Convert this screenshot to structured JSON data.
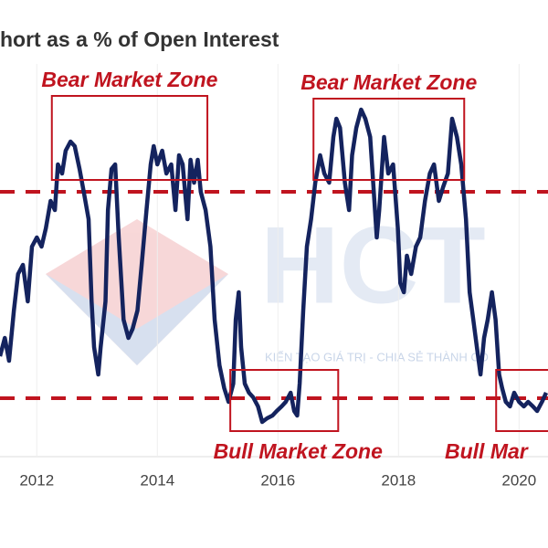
{
  "chart_data": {
    "type": "line",
    "title": "hort as a % of Open Interest",
    "watermark": "HCT",
    "watermark_tagline": "KIẾN TẠO GIÁ TRỊ - CHIA SẺ THÀNH CÔ",
    "xlim": [
      2011.39,
      2020.48
    ],
    "ylim": [
      0,
      380
    ],
    "xticks": [
      2012,
      2014,
      2016,
      2018,
      2020
    ],
    "grid": true,
    "hlines": [
      270,
      44
    ],
    "hline_color": "#c0141f",
    "annotations": [
      {
        "text": "Bear Market Zone",
        "x": [
          2012.25,
          2014.83
        ],
        "y": [
          283,
          375
        ],
        "side": "top"
      },
      {
        "text": "Bear Market Zone",
        "x": [
          2016.59,
          2019.09
        ],
        "y": [
          283,
          372
        ],
        "side": "top"
      },
      {
        "text": "Bull Market Zone",
        "x": [
          2015.21,
          2017.0
        ],
        "y": [
          8,
          75
        ],
        "side": "bottom"
      },
      {
        "text": "Bull Mar",
        "x": [
          2019.62,
          2020.6
        ],
        "y": [
          8,
          75
        ],
        "side": "bottom"
      }
    ],
    "annotation_color": "#c0141f",
    "series": [
      {
        "name": null,
        "color": "#14235e",
        "x": [
          2011.39,
          2011.47,
          2011.54,
          2011.62,
          2011.69,
          2011.77,
          2011.85,
          2011.92,
          2012.0,
          2012.08,
          2012.15,
          2012.23,
          2012.3,
          2012.35,
          2012.42,
          2012.48,
          2012.56,
          2012.63,
          2012.71,
          2012.78,
          2012.86,
          2012.91,
          2012.95,
          2013.02,
          2013.06,
          2013.14,
          2013.18,
          2013.24,
          2013.3,
          2013.36,
          2013.44,
          2013.52,
          2013.59,
          2013.67,
          2013.74,
          2013.82,
          2013.89,
          2013.94,
          2014.0,
          2014.08,
          2014.15,
          2014.23,
          2014.3,
          2014.36,
          2014.42,
          2014.5,
          2014.55,
          2014.61,
          2014.67,
          2014.72,
          2014.8,
          2014.88,
          2014.95,
          2015.03,
          2015.11,
          2015.18,
          2015.26,
          2015.3,
          2015.35,
          2015.39,
          2015.45,
          2015.52,
          2015.59,
          2015.67,
          2015.74,
          2015.82,
          2015.91,
          2015.98,
          2016.06,
          2016.13,
          2016.21,
          2016.27,
          2016.32,
          2016.36,
          2016.42,
          2016.48,
          2016.55,
          2016.62,
          2016.7,
          2016.77,
          2016.85,
          2016.92,
          2016.97,
          2017.03,
          2017.11,
          2017.18,
          2017.23,
          2017.3,
          2017.38,
          2017.45,
          2017.53,
          2017.58,
          2017.64,
          2017.68,
          2017.76,
          2017.83,
          2017.91,
          2017.99,
          2018.03,
          2018.09,
          2018.14,
          2018.21,
          2018.29,
          2018.36,
          2018.44,
          2018.52,
          2018.59,
          2018.67,
          2018.74,
          2018.82,
          2018.89,
          2018.97,
          2019.04,
          2019.12,
          2019.18,
          2019.24,
          2019.3,
          2019.36,
          2019.42,
          2019.48,
          2019.55,
          2019.61,
          2019.67,
          2019.72,
          2019.78,
          2019.85,
          2019.92,
          2020.0,
          2020.08,
          2020.15,
          2020.23,
          2020.3,
          2020.38,
          2020.45
        ],
        "values": [
          90,
          110,
          85,
          140,
          180,
          190,
          150,
          210,
          220,
          210,
          230,
          260,
          250,
          300,
          290,
          315,
          325,
          320,
          295,
          270,
          240,
          150,
          100,
          70,
          100,
          150,
          250,
          295,
          300,
          220,
          130,
          110,
          120,
          140,
          190,
          250,
          300,
          320,
          300,
          315,
          290,
          300,
          250,
          310,
          300,
          240,
          305,
          280,
          305,
          270,
          250,
          210,
          130,
          80,
          55,
          40,
          60,
          130,
          160,
          100,
          60,
          50,
          45,
          35,
          18,
          22,
          25,
          30,
          35,
          40,
          50,
          30,
          25,
          60,
          140,
          210,
          240,
          280,
          310,
          290,
          280,
          330,
          350,
          340,
          280,
          250,
          310,
          340,
          360,
          350,
          330,
          280,
          220,
          250,
          330,
          290,
          300,
          230,
          170,
          160,
          200,
          180,
          210,
          220,
          260,
          290,
          300,
          260,
          275,
          290,
          350,
          330,
          300,
          240,
          160,
          130,
          100,
          70,
          110,
          130,
          160,
          130,
          70,
          55,
          40,
          35,
          50,
          40,
          35,
          40,
          35,
          30,
          40,
          50
        ]
      }
    ]
  }
}
